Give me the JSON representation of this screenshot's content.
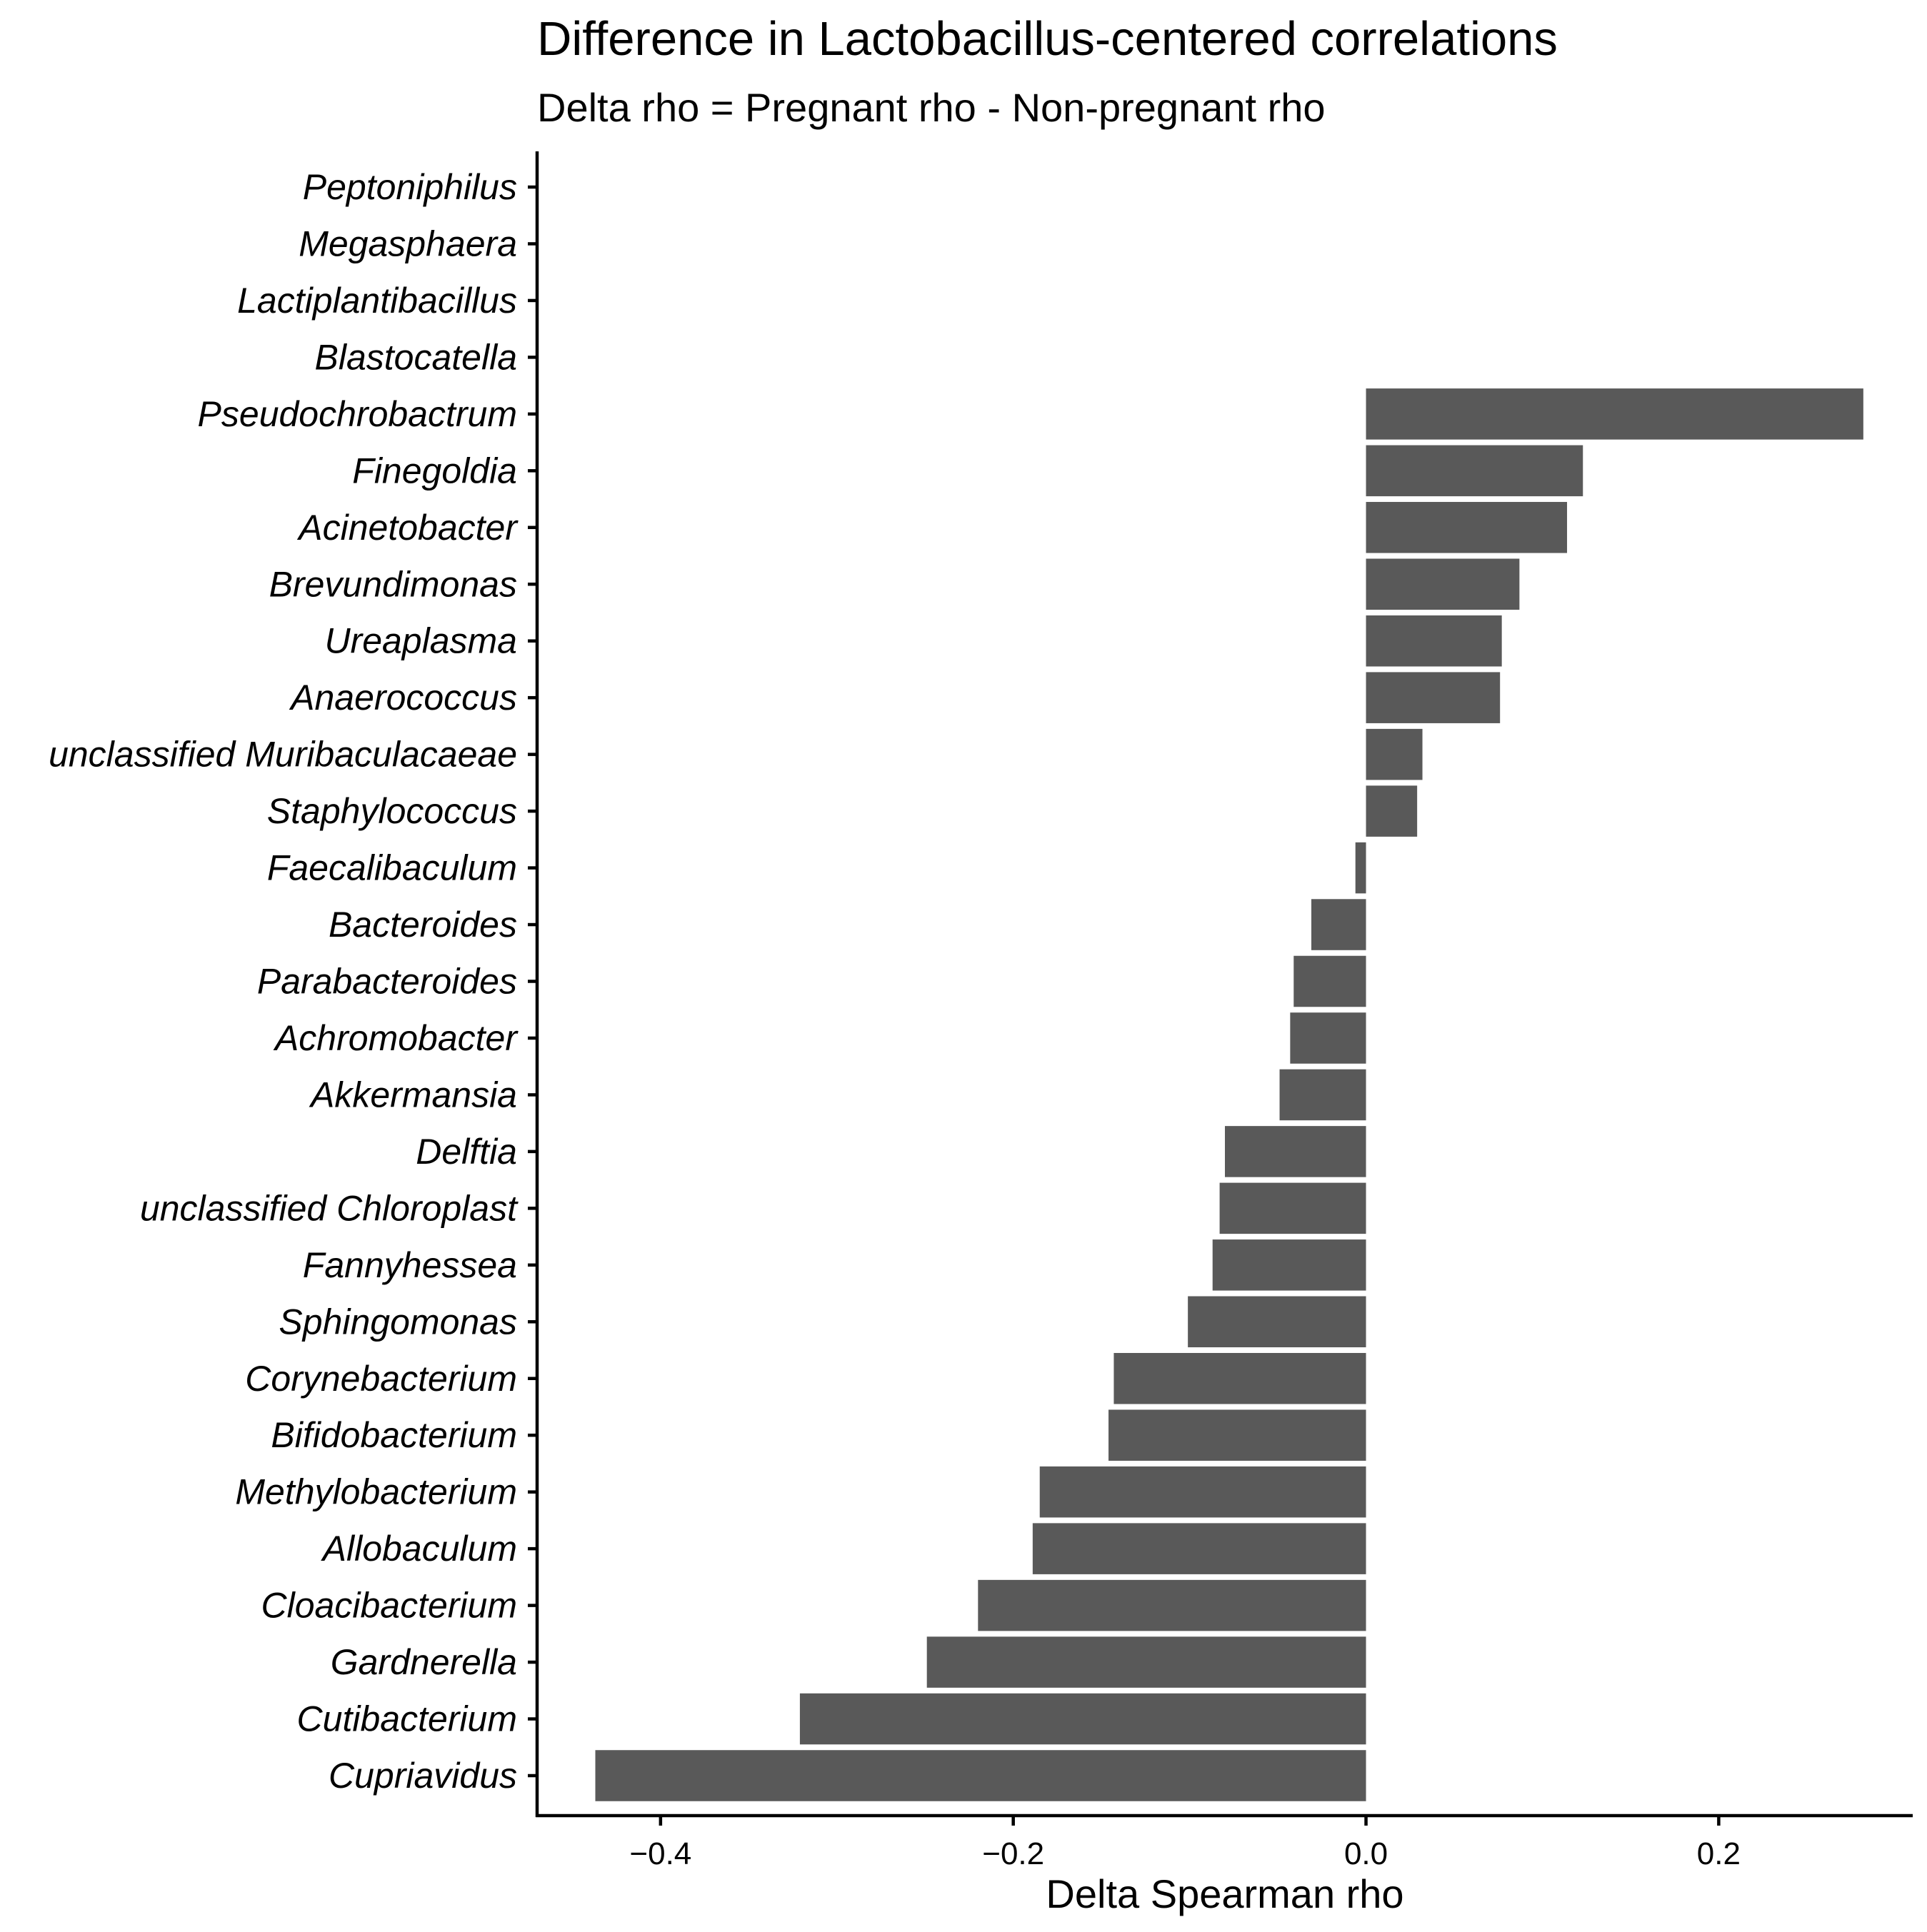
{
  "chart_data": {
    "type": "bar",
    "orientation": "horizontal",
    "title": "Difference in Lactobacillus-centered correlations",
    "subtitle": "Delta rho = Pregnant rho - Non-pregnant rho",
    "xlabel": "Delta Spearman rho",
    "ylabel": "",
    "xlim": [
      -0.47,
      0.31
    ],
    "xticks": [
      -0.4,
      -0.2,
      0.0,
      0.2
    ],
    "xtick_labels": [
      "−0.4",
      "−0.2",
      "0.0",
      "0.2"
    ],
    "grid": false,
    "legend": "none",
    "bar_color": "#595959",
    "categories": [
      "Peptoniphilus",
      "Megasphaera",
      "Lactiplantibacillus",
      "Blastocatella",
      "Pseudochrobactrum",
      "Finegoldia",
      "Acinetobacter",
      "Brevundimonas",
      "Ureaplasma",
      "Anaerococcus",
      "unclassified Muribaculacaeae",
      "Staphylococcus",
      "Faecalibaculum",
      "Bacteroides",
      "Parabacteroides",
      "Achromobacter",
      "Akkermansia",
      "Delftia ",
      "unclassified  Chloroplast",
      "Fannyhessea",
      "Sphingomonas",
      "Corynebacterium",
      "Bifidobacterium",
      "Methylobacterium",
      "Allobaculum",
      "Cloacibacterium",
      "Gardnerella",
      "Cutibacterium",
      "Cupriavidus "
    ],
    "values": [
      null,
      null,
      null,
      null,
      0.282,
      0.123,
      0.114,
      0.087,
      0.077,
      0.076,
      0.032,
      0.029,
      -0.006,
      -0.031,
      -0.041,
      -0.043,
      -0.049,
      -0.08,
      -0.083,
      -0.087,
      -0.101,
      -0.143,
      -0.146,
      -0.185,
      -0.189,
      -0.22,
      -0.249,
      -0.321,
      -0.437
    ]
  }
}
